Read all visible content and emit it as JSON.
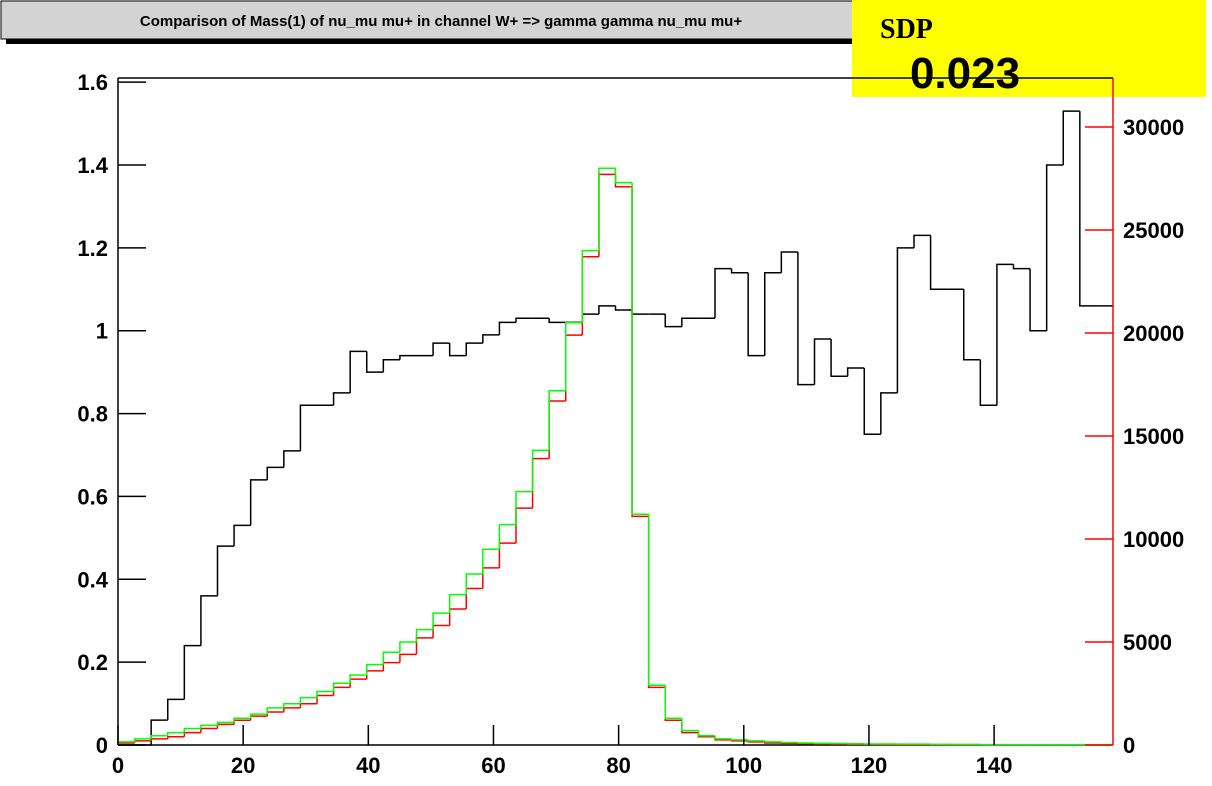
{
  "chart_data": {
    "type": "histogram",
    "title": "Comparison of Mass(1) of nu_mu mu+ in channel W+ => gamma gamma nu_mu mu+",
    "sdp_label": "SDP",
    "sdp_value": 0.023,
    "bins": [
      0,
      2.65,
      5.3,
      7.95,
      10.6,
      13.25,
      15.9,
      18.55,
      21.2,
      23.85,
      26.5,
      29.15,
      31.8,
      34.45,
      37.1,
      39.75,
      42.4,
      45.05,
      47.7,
      50.35,
      53,
      55.65,
      58.3,
      60.95,
      63.6,
      66.25,
      68.9,
      71.55,
      74.2,
      76.85,
      79.5,
      82.15,
      84.8,
      87.45,
      90.1,
      92.75,
      95.4,
      98.05,
      100.7,
      103.35,
      106,
      108.65,
      111.3,
      113.95,
      116.6,
      119.25,
      121.9,
      124.55,
      127.2,
      129.85,
      132.5,
      135.15,
      137.8,
      140.45,
      143.1,
      145.75,
      148.4,
      151.05,
      153.7,
      156.35,
      159
    ],
    "xlim": [
      0,
      159
    ],
    "xticks": [
      0,
      20,
      40,
      60,
      80,
      100,
      120,
      140
    ],
    "ylim": [
      0,
      1.61
    ],
    "yticks": [
      0,
      0.2,
      0.4,
      0.6,
      0.8,
      1,
      1.2,
      1.4,
      1.6
    ],
    "y2lim": [
      0,
      32380
    ],
    "y2ticks": [
      0,
      5000,
      10000,
      15000,
      20000,
      25000,
      30000
    ],
    "y2_axis_color": "#ff0000",
    "series": [
      {
        "color": "#000000",
        "axis": "y",
        "values": [
          0,
          0,
          0.06,
          0.11,
          0.24,
          0.36,
          0.48,
          0.53,
          0.64,
          0.67,
          0.71,
          0.82,
          0.82,
          0.85,
          0.95,
          0.9,
          0.93,
          0.94,
          0.94,
          0.97,
          0.94,
          0.97,
          0.99,
          1.02,
          1.03,
          1.03,
          1.02,
          1.02,
          1.04,
          1.06,
          1.05,
          1.04,
          1.04,
          1.01,
          1.03,
          1.03,
          1.15,
          1.14,
          0.94,
          1.14,
          1.19,
          0.87,
          0.98,
          0.89,
          0.91,
          0.75,
          0.85,
          1.2,
          1.23,
          1.1,
          1.1,
          0.93,
          0.82,
          1.16,
          1.15,
          1,
          1.4,
          1.53,
          1.06,
          1.06
        ]
      },
      {
        "color": "#ff0000",
        "axis": "y2",
        "values": [
          100,
          200,
          300,
          400,
          600,
          800,
          1000,
          1200,
          1400,
          1600,
          1800,
          2000,
          2400,
          2800,
          3200,
          3600,
          4000,
          4400,
          5200,
          5800,
          6600,
          7600,
          8600,
          9800,
          11500,
          13900,
          16700,
          19900,
          23700,
          27700,
          27100,
          11100,
          2800,
          1200,
          600,
          400,
          250,
          200,
          150,
          100,
          80,
          60,
          50,
          40,
          30,
          30,
          20,
          20,
          20,
          20,
          10,
          10,
          10,
          10,
          10,
          10,
          10,
          10,
          10,
          10
        ]
      },
      {
        "color": "#00ff00",
        "axis": "y2",
        "values": [
          150,
          300,
          450,
          600,
          800,
          950,
          1100,
          1300,
          1500,
          1800,
          2000,
          2300,
          2600,
          3000,
          3400,
          3900,
          4500,
          5000,
          5600,
          6400,
          7300,
          8300,
          9500,
          10700,
          12300,
          14300,
          17200,
          20500,
          24000,
          28000,
          27300,
          11200,
          2900,
          1300,
          700,
          450,
          300,
          250,
          200,
          150,
          120,
          100,
          80,
          70,
          60,
          50,
          50,
          40,
          40,
          30,
          30,
          30,
          20,
          20,
          20,
          20,
          20,
          20,
          20,
          20
        ]
      }
    ]
  }
}
